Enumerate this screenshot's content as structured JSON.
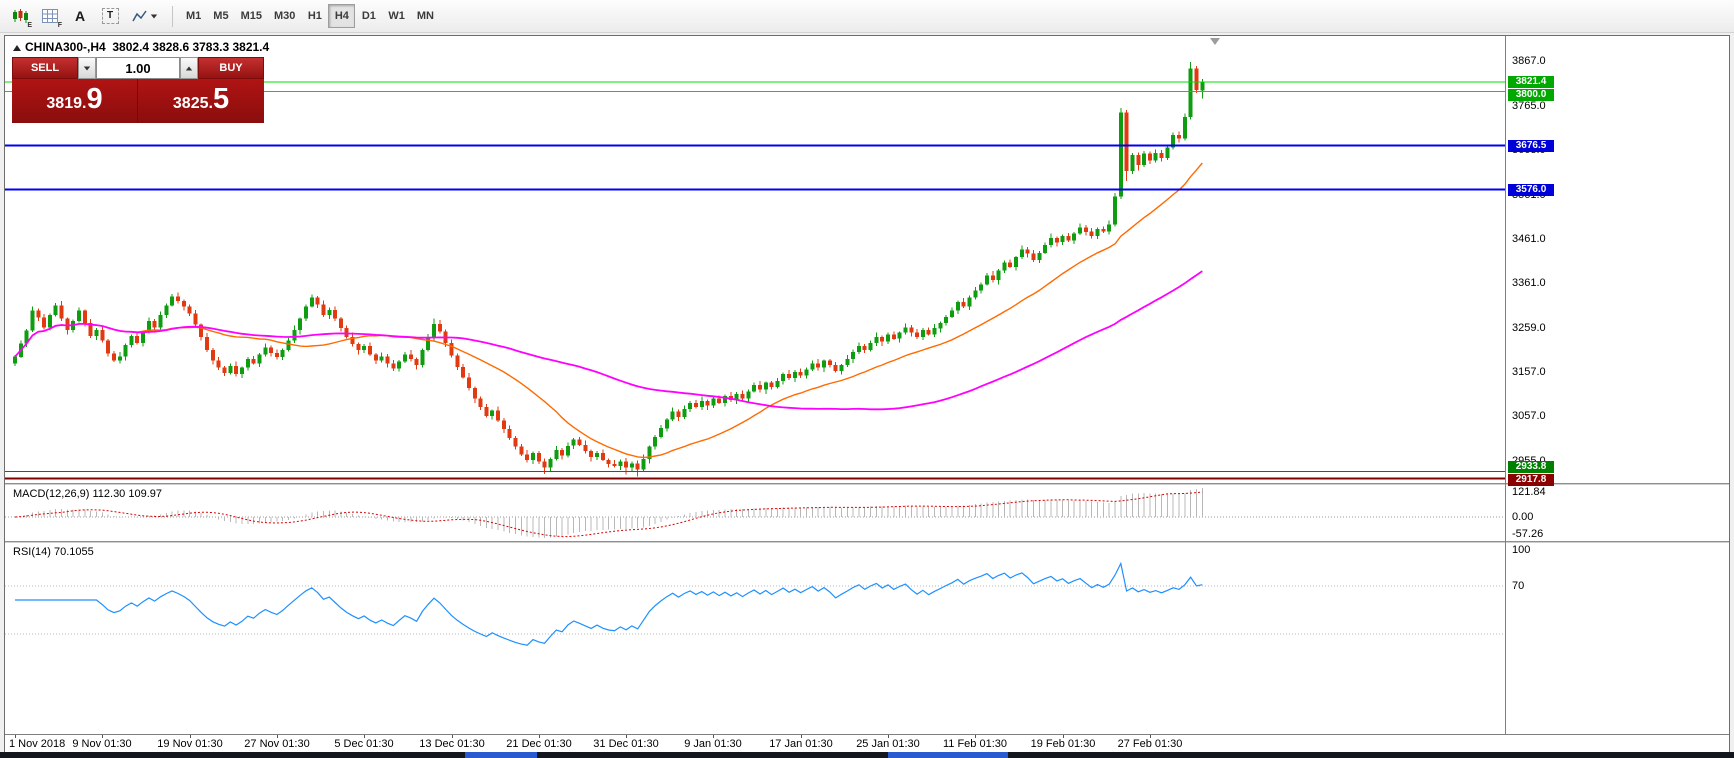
{
  "toolbar": {
    "icons": [
      {
        "name": "chart-style",
        "sub": "E"
      },
      {
        "name": "grid",
        "sub": "F"
      },
      {
        "name": "text-tool",
        "label": "A"
      },
      {
        "name": "text-label-tool",
        "label": "T"
      },
      {
        "name": "drawing-tools"
      }
    ],
    "timeframes": [
      "M1",
      "M5",
      "M15",
      "M30",
      "H1",
      "H4",
      "D1",
      "W1",
      "MN"
    ],
    "active_timeframe": "H4"
  },
  "chart": {
    "title": "CHINA300-,H4",
    "ohlc_text": "3802.4 3828.6 3783.3 3821.4",
    "macd_label": "MACD(12,26,9) 112.30 109.97",
    "rsi_label": "RSI(14) 70.1055"
  },
  "trade_panel": {
    "sell_label": "SELL",
    "buy_label": "BUY",
    "volume": "1.00",
    "sell_price_main": "3819.",
    "sell_price_big": "9",
    "buy_price_main": "3825.",
    "buy_price_big": "5"
  },
  "chart_data": {
    "type": "candlestick",
    "symbol": "CHINA300-",
    "timeframe": "H4",
    "last_bar_ohlc": {
      "open": 3802.4,
      "high": 3828.6,
      "low": 3783.3,
      "close": 3821.4
    },
    "ylim": [
      2915,
      3880
    ],
    "colors": {
      "bull": "#0e9c10",
      "bear": "#e23a10"
    },
    "y_ticks": [
      "3867.0",
      "3765.0",
      "3663.0",
      "3561.0",
      "3461.0",
      "3361.0",
      "3259.0",
      "3157.0",
      "3057.0",
      "2955.0"
    ],
    "x_ticks": {
      "step": 15,
      "labels": [
        "1 Nov 2018",
        "9 Nov 01:30",
        "19 Nov 01:30",
        "27 Nov 01:30",
        "5 Dec 01:30",
        "13 Dec 01:30",
        "21 Dec 01:30",
        "31 Dec 01:30",
        "9 Jan 01:30",
        "17 Jan 01:30",
        "25 Jan 01:30",
        "11 Feb 01:30",
        "19 Feb 01:30",
        "27 Feb 01:30"
      ]
    },
    "hlines": [
      {
        "price": 3821.4,
        "label": "3821.4",
        "color": "#00dc00",
        "badge": "#00a800",
        "width": 1,
        "dy": 0
      },
      {
        "price": 3800.0,
        "label": "3800.0",
        "color": "#00dc00",
        "badge": "#00a800",
        "width": 1,
        "dy": 4
      },
      {
        "price": 3676.5,
        "label": "3676.5",
        "color": "#0000f0",
        "badge": "#0000d8",
        "width": 2,
        "dy": 0
      },
      {
        "price": 3576.0,
        "label": "3576.0",
        "color": "#0000f0",
        "badge": "#0000d8",
        "width": 2,
        "dy": 0
      },
      {
        "price": 2933.8,
        "label": "2933.8",
        "color": "#008000",
        "badge": "#008000",
        "width": 1,
        "dy": -4
      },
      {
        "price": 2917.8,
        "label": "2917.8",
        "color": "#800000",
        "badge": "#8b0000",
        "width": 2,
        "dy": 2
      }
    ],
    "overlays": [
      {
        "name": "ma-fast",
        "type": "sma",
        "period": 22,
        "color": "#ff6a00",
        "width": 1.4
      },
      {
        "name": "ma-slow",
        "type": "sma",
        "period": 75,
        "color": "#ff00ff",
        "width": 1.8
      }
    ],
    "macd": {
      "params": [
        12,
        26,
        9
      ],
      "value_main": "112.30",
      "value_signal": "109.97",
      "axis": [
        "121.84",
        "0.00",
        "-57.26"
      ],
      "colors": {
        "histogram": "#b8b8b8",
        "signal": "#dd0000"
      }
    },
    "rsi": {
      "period": 14,
      "value": "70.1055",
      "axis": [
        "100",
        "70"
      ],
      "levels": [
        70,
        30
      ],
      "color": "#1e90ff"
    },
    "candles": [
      [
        3180,
        3199,
        3174,
        3195
      ],
      [
        3195,
        3232,
        3192,
        3225
      ],
      [
        3225,
        3258,
        3217,
        3255
      ],
      [
        3255,
        3309,
        3251,
        3300
      ],
      [
        3300,
        3305,
        3276,
        3285
      ],
      [
        3285,
        3293,
        3257,
        3262
      ],
      [
        3262,
        3294,
        3255,
        3290
      ],
      [
        3290,
        3318,
        3287,
        3312
      ],
      [
        3312,
        3322,
        3276,
        3282
      ],
      [
        3282,
        3285,
        3246,
        3256
      ],
      [
        3256,
        3280,
        3250,
        3276
      ],
      [
        3276,
        3307,
        3273,
        3300
      ],
      [
        3300,
        3303,
        3264,
        3272
      ],
      [
        3272,
        3281,
        3238,
        3242
      ],
      [
        3242,
        3261,
        3233,
        3256
      ],
      [
        3256,
        3264,
        3227,
        3232
      ],
      [
        3232,
        3236,
        3195,
        3202
      ],
      [
        3202,
        3208,
        3183,
        3186
      ],
      [
        3186,
        3206,
        3180,
        3196
      ],
      [
        3196,
        3225,
        3186,
        3222
      ],
      [
        3222,
        3246,
        3216,
        3242
      ],
      [
        3242,
        3249,
        3223,
        3226
      ],
      [
        3226,
        3255,
        3218,
        3252
      ],
      [
        3252,
        3285,
        3248,
        3276
      ],
      [
        3276,
        3281,
        3253,
        3262
      ],
      [
        3262,
        3298,
        3257,
        3290
      ],
      [
        3290,
        3316,
        3283,
        3312
      ],
      [
        3312,
        3338,
        3309,
        3332
      ],
      [
        3332,
        3342,
        3316,
        3322
      ],
      [
        3322,
        3325,
        3300,
        3310
      ],
      [
        3310,
        3314,
        3288,
        3294
      ],
      [
        3294,
        3301,
        3265,
        3268
      ],
      [
        3268,
        3271,
        3232,
        3240
      ],
      [
        3240,
        3249,
        3206,
        3210
      ],
      [
        3210,
        3215,
        3177,
        3186
      ],
      [
        3186,
        3194,
        3165,
        3170
      ],
      [
        3170,
        3174,
        3151,
        3158
      ],
      [
        3158,
        3180,
        3155,
        3174
      ],
      [
        3174,
        3184,
        3150,
        3156
      ],
      [
        3156,
        3173,
        3146,
        3170
      ],
      [
        3170,
        3194,
        3164,
        3190
      ],
      [
        3190,
        3197,
        3177,
        3180
      ],
      [
        3180,
        3203,
        3172,
        3200
      ],
      [
        3200,
        3225,
        3196,
        3216
      ],
      [
        3216,
        3221,
        3195,
        3204
      ],
      [
        3204,
        3212,
        3189,
        3194
      ],
      [
        3194,
        3214,
        3187,
        3210
      ],
      [
        3210,
        3238,
        3207,
        3232
      ],
      [
        3232,
        3266,
        3226,
        3256
      ],
      [
        3256,
        3285,
        3246,
        3282
      ],
      [
        3282,
        3314,
        3276,
        3310
      ],
      [
        3310,
        3337,
        3307,
        3330
      ],
      [
        3330,
        3333,
        3306,
        3314
      ],
      [
        3314,
        3323,
        3286,
        3290
      ],
      [
        3290,
        3307,
        3281,
        3302
      ],
      [
        3302,
        3310,
        3277,
        3282
      ],
      [
        3282,
        3286,
        3253,
        3260
      ],
      [
        3260,
        3266,
        3237,
        3240
      ],
      [
        3240,
        3250,
        3218,
        3224
      ],
      [
        3224,
        3227,
        3200,
        3210
      ],
      [
        3210,
        3224,
        3204,
        3220
      ],
      [
        3220,
        3227,
        3197,
        3200
      ],
      [
        3200,
        3203,
        3178,
        3186
      ],
      [
        3186,
        3205,
        3182,
        3196
      ],
      [
        3196,
        3201,
        3171,
        3180
      ],
      [
        3180,
        3188,
        3163,
        3168
      ],
      [
        3168,
        3188,
        3161,
        3184
      ],
      [
        3184,
        3206,
        3181,
        3200
      ],
      [
        3200,
        3210,
        3184,
        3190
      ],
      [
        3190,
        3193,
        3166,
        3176
      ],
      [
        3176,
        3214,
        3170,
        3210
      ],
      [
        3210,
        3247,
        3207,
        3240
      ],
      [
        3240,
        3282,
        3232,
        3270
      ],
      [
        3270,
        3279,
        3248,
        3252
      ],
      [
        3252,
        3257,
        3217,
        3226
      ],
      [
        3226,
        3234,
        3193,
        3198
      ],
      [
        3198,
        3202,
        3165,
        3172
      ],
      [
        3172,
        3178,
        3145,
        3148
      ],
      [
        3148,
        3158,
        3118,
        3124
      ],
      [
        3124,
        3127,
        3090,
        3100
      ],
      [
        3100,
        3104,
        3074,
        3080
      ],
      [
        3080,
        3087,
        3057,
        3060
      ],
      [
        3060,
        3075,
        3052,
        3072
      ],
      [
        3072,
        3081,
        3046,
        3050
      ],
      [
        3050,
        3055,
        3021,
        3030
      ],
      [
        3030,
        3038,
        3005,
        3010
      ],
      [
        3010,
        3014,
        2983,
        2990
      ],
      [
        2990,
        2996,
        2969,
        2972
      ],
      [
        2972,
        2982,
        2954,
        2960
      ],
      [
        2960,
        2979,
        2950,
        2976
      ],
      [
        2976,
        2980,
        2950,
        2956
      ],
      [
        2956,
        2963,
        2928,
        2942
      ],
      [
        2942,
        2965,
        2934,
        2962
      ],
      [
        2962,
        2991,
        2958,
        2982
      ],
      [
        2982,
        2987,
        2961,
        2970
      ],
      [
        2970,
        3000,
        2965,
        2992
      ],
      [
        2992,
        3010,
        2985,
        3006
      ],
      [
        3006,
        3012,
        2991,
        2994
      ],
      [
        2994,
        3004,
        2974,
        2980
      ],
      [
        2980,
        2983,
        2956,
        2966
      ],
      [
        2966,
        2980,
        2960,
        2976
      ],
      [
        2976,
        2983,
        2957,
        2960
      ],
      [
        2960,
        2963,
        2942,
        2950
      ],
      [
        2950,
        2959,
        2942,
        2946
      ],
      [
        2946,
        2961,
        2937,
        2956
      ],
      [
        2956,
        2964,
        2926,
        2942
      ],
      [
        2942,
        2956,
        2935,
        2952
      ],
      [
        2952,
        2958,
        2922,
        2938
      ],
      [
        2938,
        2972,
        2932,
        2962
      ],
      [
        2962,
        2993,
        2952,
        2990
      ],
      [
        2990,
        3016,
        2984,
        3012
      ],
      [
        3012,
        3039,
        3009,
        3032
      ],
      [
        3032,
        3055,
        3024,
        3052
      ],
      [
        3052,
        3079,
        3048,
        3070
      ],
      [
        3070,
        3075,
        3049,
        3058
      ],
      [
        3058,
        3084,
        3053,
        3076
      ],
      [
        3076,
        3094,
        3069,
        3090
      ],
      [
        3090,
        3096,
        3077,
        3080
      ],
      [
        3080,
        3104,
        3074,
        3094
      ],
      [
        3094,
        3097,
        3074,
        3084
      ],
      [
        3084,
        3104,
        3078,
        3100
      ],
      [
        3100,
        3107,
        3087,
        3090
      ],
      [
        3090,
        3109,
        3082,
        3106
      ],
      [
        3106,
        3115,
        3092,
        3096
      ],
      [
        3096,
        3115,
        3087,
        3110
      ],
      [
        3110,
        3118,
        3095,
        3100
      ],
      [
        3100,
        3120,
        3093,
        3116
      ],
      [
        3116,
        3136,
        3113,
        3130
      ],
      [
        3130,
        3140,
        3114,
        3120
      ],
      [
        3120,
        3139,
        3110,
        3136
      ],
      [
        3136,
        3140,
        3120,
        3126
      ],
      [
        3126,
        3147,
        3123,
        3140
      ],
      [
        3140,
        3159,
        3132,
        3156
      ],
      [
        3156,
        3165,
        3142,
        3146
      ],
      [
        3146,
        3165,
        3137,
        3160
      ],
      [
        3160,
        3168,
        3147,
        3152
      ],
      [
        3152,
        3170,
        3145,
        3166
      ],
      [
        3166,
        3186,
        3163,
        3180
      ],
      [
        3180,
        3190,
        3164,
        3170
      ],
      [
        3170,
        3189,
        3160,
        3186
      ],
      [
        3186,
        3190,
        3170,
        3176
      ],
      [
        3176,
        3183,
        3159,
        3162
      ],
      [
        3162,
        3179,
        3154,
        3176
      ],
      [
        3176,
        3199,
        3172,
        3190
      ],
      [
        3190,
        3211,
        3181,
        3206
      ],
      [
        3206,
        3228,
        3201,
        3220
      ],
      [
        3220,
        3224,
        3203,
        3210
      ],
      [
        3210,
        3232,
        3207,
        3226
      ],
      [
        3226,
        3250,
        3220,
        3240
      ],
      [
        3240,
        3243,
        3220,
        3230
      ],
      [
        3230,
        3250,
        3224,
        3246
      ],
      [
        3246,
        3253,
        3233,
        3236
      ],
      [
        3236,
        3253,
        3228,
        3250
      ],
      [
        3250,
        3271,
        3246,
        3262
      ],
      [
        3262,
        3267,
        3241,
        3250
      ],
      [
        3250,
        3258,
        3235,
        3240
      ],
      [
        3240,
        3260,
        3233,
        3256
      ],
      [
        3256,
        3262,
        3243,
        3246
      ],
      [
        3246,
        3270,
        3240,
        3260
      ],
      [
        3260,
        3275,
        3250,
        3272
      ],
      [
        3272,
        3290,
        3266,
        3286
      ],
      [
        3286,
        3307,
        3283,
        3300
      ],
      [
        3300,
        3323,
        3292,
        3320
      ],
      [
        3320,
        3329,
        3306,
        3310
      ],
      [
        3310,
        3335,
        3301,
        3330
      ],
      [
        3330,
        3354,
        3325,
        3346
      ],
      [
        3346,
        3364,
        3339,
        3360
      ],
      [
        3360,
        3386,
        3357,
        3380
      ],
      [
        3380,
        3390,
        3364,
        3370
      ],
      [
        3370,
        3395,
        3360,
        3392
      ],
      [
        3392,
        3414,
        3386,
        3410
      ],
      [
        3410,
        3417,
        3397,
        3400
      ],
      [
        3400,
        3425,
        3392,
        3422
      ],
      [
        3422,
        3449,
        3418,
        3440
      ],
      [
        3440,
        3445,
        3421,
        3430
      ],
      [
        3430,
        3438,
        3411,
        3416
      ],
      [
        3416,
        3436,
        3409,
        3432
      ],
      [
        3432,
        3456,
        3429,
        3450
      ],
      [
        3450,
        3476,
        3444,
        3466
      ],
      [
        3466,
        3469,
        3446,
        3456
      ],
      [
        3456,
        3474,
        3450,
        3470
      ],
      [
        3470,
        3477,
        3457,
        3460
      ],
      [
        3460,
        3479,
        3452,
        3476
      ],
      [
        3476,
        3499,
        3472,
        3490
      ],
      [
        3490,
        3495,
        3471,
        3480
      ],
      [
        3480,
        3488,
        3465,
        3470
      ],
      [
        3470,
        3490,
        3463,
        3486
      ],
      [
        3486,
        3492,
        3477,
        3480
      ],
      [
        3480,
        3506,
        3474,
        3496
      ],
      [
        3496,
        3568,
        3492,
        3560
      ],
      [
        3560,
        3762,
        3555,
        3752
      ],
      [
        3752,
        3758,
        3596,
        3618
      ],
      [
        3618,
        3660,
        3612,
        3655
      ],
      [
        3655,
        3661,
        3620,
        3632
      ],
      [
        3632,
        3664,
        3628,
        3658
      ],
      [
        3658,
        3663,
        3634,
        3642
      ],
      [
        3642,
        3668,
        3638,
        3660
      ],
      [
        3660,
        3666,
        3640,
        3648
      ],
      [
        3648,
        3678,
        3644,
        3672
      ],
      [
        3672,
        3706,
        3668,
        3700
      ],
      [
        3700,
        3708,
        3684,
        3692
      ],
      [
        3692,
        3750,
        3688,
        3742
      ],
      [
        3742,
        3867,
        3736,
        3852
      ],
      [
        3852,
        3858,
        3796,
        3803
      ],
      [
        3802.4,
        3828.6,
        3783.3,
        3821.4
      ]
    ]
  },
  "taskbar": {
    "items": 2
  }
}
